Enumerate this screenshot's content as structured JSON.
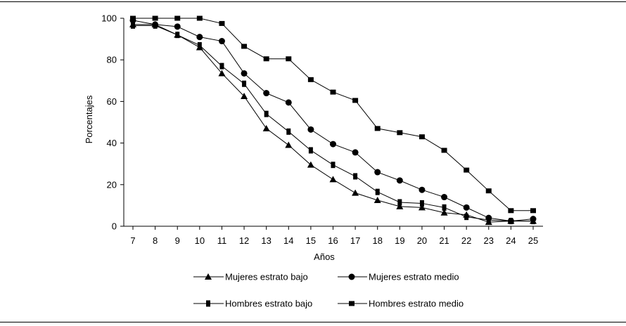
{
  "chart_data": {
    "type": "line",
    "title": "",
    "xlabel": "Años",
    "ylabel": "Porcentajes",
    "x": [
      7,
      8,
      9,
      10,
      11,
      12,
      13,
      14,
      15,
      16,
      17,
      18,
      19,
      20,
      21,
      22,
      23,
      24,
      25
    ],
    "xlim": [
      7,
      25
    ],
    "ylim": [
      0,
      100
    ],
    "yticks": [
      0,
      20,
      40,
      60,
      80,
      100
    ],
    "grid": false,
    "legend_position": "bottom",
    "series": [
      {
        "name": "Mujeres estrato bajo",
        "marker": "triangle",
        "values": [
          97,
          97,
          92,
          86,
          73.5,
          62.5,
          47,
          39,
          29.5,
          22.5,
          16,
          12.5,
          9.5,
          9,
          6.5,
          5.5,
          2,
          2.5,
          2.5
        ]
      },
      {
        "name": "Mujeres estrato medio",
        "marker": "circle",
        "values": [
          99,
          97,
          96,
          91,
          89,
          73.5,
          64,
          59.5,
          46.5,
          39.5,
          35.5,
          26,
          22,
          17.5,
          14,
          9,
          4,
          2.5,
          3.5
        ]
      },
      {
        "name": "Hombres estrato bajo",
        "marker": "bar-square",
        "values": [
          96.5,
          96.5,
          92,
          87,
          77,
          68.5,
          54,
          45.5,
          36.5,
          29.5,
          24,
          16.5,
          11.5,
          11,
          9,
          4.5,
          3,
          2.5,
          2.5
        ]
      },
      {
        "name": "Hombres estrato medio",
        "marker": "square",
        "values": [
          100,
          100,
          100,
          100,
          97.5,
          86.5,
          80.5,
          80.5,
          70.5,
          64.5,
          60.5,
          47,
          45,
          43,
          36.5,
          27,
          17,
          7.5,
          7.5
        ]
      }
    ]
  }
}
